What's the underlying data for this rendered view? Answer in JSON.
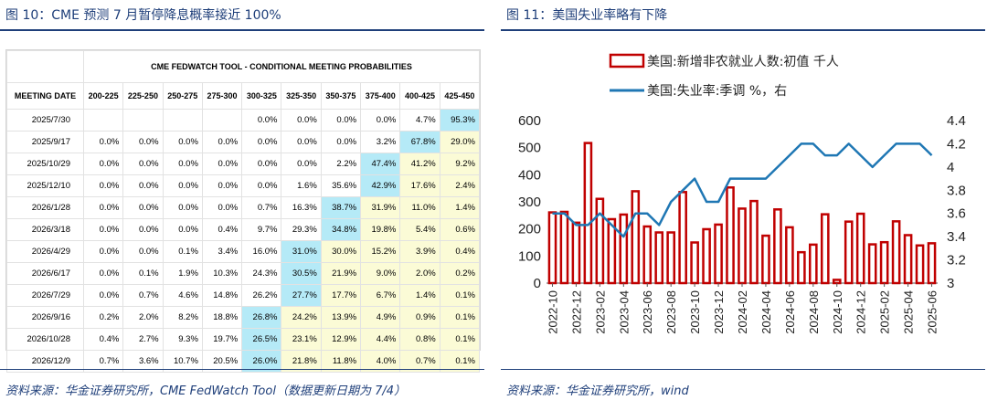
{
  "left": {
    "title": "图 10：CME 预测 7 月暂停降息概率接近 100%",
    "source": "资料来源：华金证券研究所，CME FedWatch Tool（数据更新日期为 7/4）"
  },
  "right": {
    "title": "图 11：美国失业率略有下降",
    "source": "资料来源：华金证券研究所，wind"
  },
  "table": {
    "super_header": "CME FEDWATCH TOOL - CONDITIONAL MEETING PROBABILITIES",
    "columns": [
      "MEETING DATE",
      "200-225",
      "225-250",
      "250-275",
      "275-300",
      "300-325",
      "325-350",
      "350-375",
      "375-400",
      "400-425",
      "425-450"
    ],
    "rows": [
      {
        "date": "2025/7/30",
        "cells": [
          "",
          "",
          "",
          "",
          "0.0%",
          "0.0%",
          "0.0%",
          "0.0%",
          "4.7%",
          "95.3%"
        ],
        "hl": 9
      },
      {
        "date": "2025/9/17",
        "cells": [
          "0.0%",
          "0.0%",
          "0.0%",
          "0.0%",
          "0.0%",
          "0.0%",
          "0.0%",
          "3.2%",
          "67.8%",
          "29.0%"
        ],
        "hl": 8
      },
      {
        "date": "2025/10/29",
        "cells": [
          "0.0%",
          "0.0%",
          "0.0%",
          "0.0%",
          "0.0%",
          "0.0%",
          "2.2%",
          "47.4%",
          "41.2%",
          "9.2%"
        ],
        "hl": 7
      },
      {
        "date": "2025/12/10",
        "cells": [
          "0.0%",
          "0.0%",
          "0.0%",
          "0.0%",
          "0.0%",
          "1.6%",
          "35.6%",
          "42.9%",
          "17.6%",
          "2.4%"
        ],
        "hl": 7
      },
      {
        "date": "2026/1/28",
        "cells": [
          "0.0%",
          "0.0%",
          "0.0%",
          "0.0%",
          "0.7%",
          "16.3%",
          "38.7%",
          "31.9%",
          "11.0%",
          "1.4%"
        ],
        "hl": 6
      },
      {
        "date": "2026/3/18",
        "cells": [
          "0.0%",
          "0.0%",
          "0.0%",
          "0.4%",
          "9.7%",
          "29.3%",
          "34.8%",
          "19.8%",
          "5.4%",
          "0.6%"
        ],
        "hl": 6
      },
      {
        "date": "2026/4/29",
        "cells": [
          "0.0%",
          "0.0%",
          "0.1%",
          "3.4%",
          "16.0%",
          "31.0%",
          "30.0%",
          "15.2%",
          "3.9%",
          "0.4%"
        ],
        "hl": 5
      },
      {
        "date": "2026/6/17",
        "cells": [
          "0.0%",
          "0.1%",
          "1.9%",
          "10.3%",
          "24.3%",
          "30.5%",
          "21.9%",
          "9.0%",
          "2.0%",
          "0.2%"
        ],
        "hl": 5
      },
      {
        "date": "2026/7/29",
        "cells": [
          "0.0%",
          "0.7%",
          "4.6%",
          "14.8%",
          "26.2%",
          "27.7%",
          "17.7%",
          "6.7%",
          "1.4%",
          "0.1%"
        ],
        "hl": 5
      },
      {
        "date": "2026/9/16",
        "cells": [
          "0.2%",
          "2.0%",
          "8.2%",
          "18.8%",
          "26.8%",
          "24.2%",
          "13.9%",
          "4.9%",
          "0.9%",
          "0.1%"
        ],
        "hl": 4
      },
      {
        "date": "2026/10/28",
        "cells": [
          "0.4%",
          "2.7%",
          "9.3%",
          "19.7%",
          "26.5%",
          "23.1%",
          "12.9%",
          "4.4%",
          "0.8%",
          "0.1%"
        ],
        "hl": 4
      },
      {
        "date": "2026/12/9",
        "cells": [
          "0.7%",
          "3.6%",
          "10.7%",
          "20.5%",
          "26.0%",
          "21.8%",
          "11.8%",
          "4.0%",
          "0.7%",
          "0.1%"
        ],
        "hl": 4
      }
    ],
    "colors": {
      "highlight": "#b5eaf7",
      "high_side": "#fbfbd6"
    }
  },
  "chart_data": {
    "type": "bar+line",
    "x": [
      "2022-10",
      "2022-11",
      "2022-12",
      "2023-01",
      "2023-02",
      "2023-03",
      "2023-04",
      "2023-05",
      "2023-06",
      "2023-07",
      "2023-08",
      "2023-09",
      "2023-10",
      "2023-11",
      "2023-12",
      "2024-01",
      "2024-02",
      "2024-03",
      "2024-04",
      "2024-05",
      "2024-06",
      "2024-07",
      "2024-08",
      "2024-09",
      "2024-10",
      "2024-11",
      "2024-12",
      "2025-01",
      "2025-02",
      "2025-03",
      "2025-04",
      "2025-05",
      "2025-06"
    ],
    "x_tick_labels": [
      "2022-10",
      "2022-12",
      "2023-02",
      "2023-04",
      "2023-06",
      "2023-08",
      "2023-10",
      "2023-12",
      "2024-02",
      "2024-04",
      "2024-06",
      "2024-08",
      "2024-10",
      "2024-12",
      "2025-02",
      "2025-04",
      "2025-06"
    ],
    "series": [
      {
        "name": "美国:新增非农就业人数:初值 千人",
        "type": "bar",
        "axis": "left",
        "color": "#c00000",
        "values": [
          261,
          263,
          223,
          517,
          311,
          236,
          253,
          339,
          209,
          187,
          187,
          336,
          150,
          199,
          216,
          353,
          275,
          303,
          175,
          272,
          206,
          114,
          142,
          254,
          12,
          227,
          256,
          143,
          151,
          228,
          177,
          139,
          147
        ]
      },
      {
        "name": "美国:失业率:季调 %，右",
        "type": "line",
        "axis": "right",
        "color": "#1f77b4",
        "values": [
          3.6,
          3.6,
          3.5,
          3.5,
          3.6,
          3.5,
          3.4,
          3.6,
          3.6,
          3.5,
          3.7,
          3.8,
          3.9,
          3.7,
          3.7,
          3.9,
          3.9,
          3.9,
          3.9,
          4.0,
          4.1,
          4.2,
          4.2,
          4.1,
          4.1,
          4.2,
          4.1,
          4.0,
          4.1,
          4.2,
          4.2,
          4.2,
          4.1
        ]
      }
    ],
    "ylim_left": [
      0,
      600
    ],
    "yticks_left": [
      0,
      100,
      200,
      300,
      400,
      500,
      600
    ],
    "ylim_right": [
      3.0,
      4.4
    ],
    "yticks_right": [
      "3",
      "3.2",
      "3.4",
      "3.6",
      "3.8",
      "4",
      "4.2",
      "4.4"
    ],
    "legend_position": "top"
  }
}
